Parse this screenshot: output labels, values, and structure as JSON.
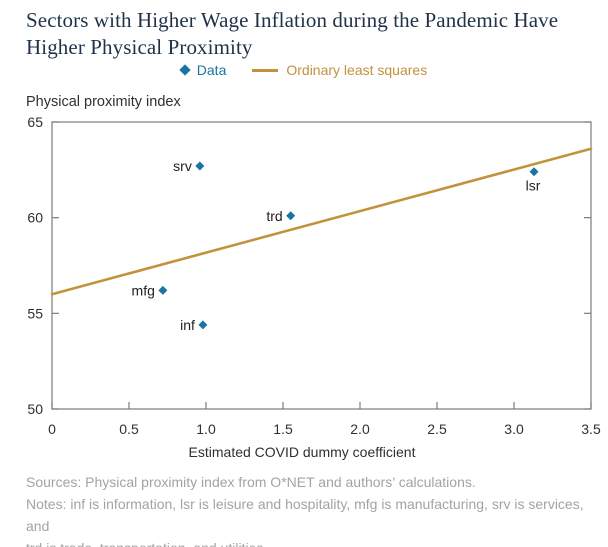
{
  "chart_data": {
    "type": "scatter",
    "title": "Sectors with Higher Wage Inflation during the Pandemic Have Higher Physical Proximity",
    "title_lines": [
      "Sectors with Higher Wage Inflation during the Pandemic Have",
      "Higher Physical Proximity"
    ],
    "xlabel": "Estimated COVID dummy coefficient",
    "ylabel": "Physical proximity index",
    "xlim": [
      0,
      3.5
    ],
    "ylim": [
      50,
      65
    ],
    "grid": false,
    "legend_position": "top-center",
    "x_tick_values": [
      0,
      0.5,
      1.0,
      1.5,
      2.0,
      2.5,
      3.0,
      3.5
    ],
    "x_tick_labels": [
      "0",
      "0.5",
      "1.0",
      "1.5",
      "2.0",
      "2.5",
      "3.0",
      "3.5"
    ],
    "y_tick_values": [
      50,
      55,
      60,
      65
    ],
    "y_tick_labels": [
      "50",
      "55",
      "60",
      "65"
    ],
    "legend": [
      {
        "label": "Data",
        "marker": "diamond",
        "color": "#1b74a3"
      },
      {
        "label": "Ordinary least squares",
        "marker": "line",
        "color": "#c2923c"
      }
    ],
    "points": [
      {
        "name": "srv",
        "x": 0.96,
        "y": 62.7,
        "label_side": "left"
      },
      {
        "name": "trd",
        "x": 1.55,
        "y": 60.1,
        "label_side": "left"
      },
      {
        "name": "mfg",
        "x": 0.72,
        "y": 56.2,
        "label_side": "left"
      },
      {
        "name": "inf",
        "x": 0.98,
        "y": 54.4,
        "label_side": "left"
      },
      {
        "name": "lsr",
        "x": 3.13,
        "y": 62.4,
        "label_side": "below"
      }
    ],
    "ols_line": {
      "x0": 0,
      "y0": 56.0,
      "x1": 3.5,
      "y1": 63.6
    }
  },
  "footer": {
    "sources": "Sources: Physical proximity index from O*NET and authors’ calculations.",
    "notes_lines": [
      "Notes: inf is information, lsr is leisure and hospitality, mfg is manufacturing, srv is services, and",
      "trd is trade, transportation, and utilities."
    ]
  },
  "colors": {
    "accent_blue": "#1b74a3",
    "accent_gold": "#c2923c",
    "title_navy": "#1f3247",
    "text_dark": "#303030",
    "axis_gray": "#7b7b7b",
    "footer_gray": "#a3a3a3"
  }
}
